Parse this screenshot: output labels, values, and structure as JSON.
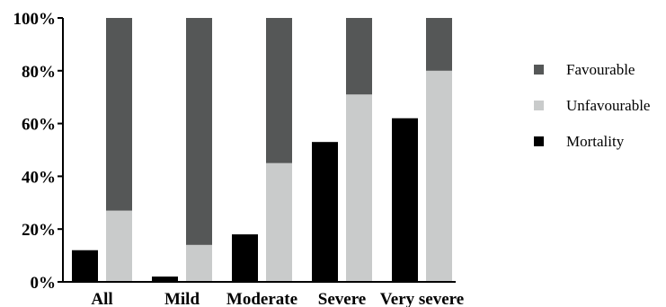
{
  "chart_data": {
    "type": "bar",
    "categories": [
      "All",
      "Mild",
      "Moderate",
      "Severe",
      "Very severe"
    ],
    "y_axis": {
      "ylim": [
        0,
        100
      ],
      "ticks": [
        "0%",
        "20%",
        "40%",
        "60%",
        "80%",
        "100%"
      ],
      "grid": false
    },
    "mortality": {
      "name": "Mortality",
      "color": "#000000",
      "values": [
        12,
        2,
        18,
        53,
        62
      ]
    },
    "stacked": [
      {
        "name": "Unfavourable",
        "color": "#c9cbcb",
        "values": [
          27,
          14,
          45,
          71,
          80
        ]
      },
      {
        "name": "Favourable",
        "color": "#555757",
        "values": [
          73,
          86,
          55,
          29,
          20
        ]
      }
    ],
    "legend": {
      "placement": "right",
      "items": [
        {
          "label": "Favourable",
          "color": "#555757"
        },
        {
          "label": "Unfavourable",
          "color": "#c9cbcb"
        },
        {
          "label": "Mortality",
          "color": "#000000"
        }
      ]
    }
  }
}
